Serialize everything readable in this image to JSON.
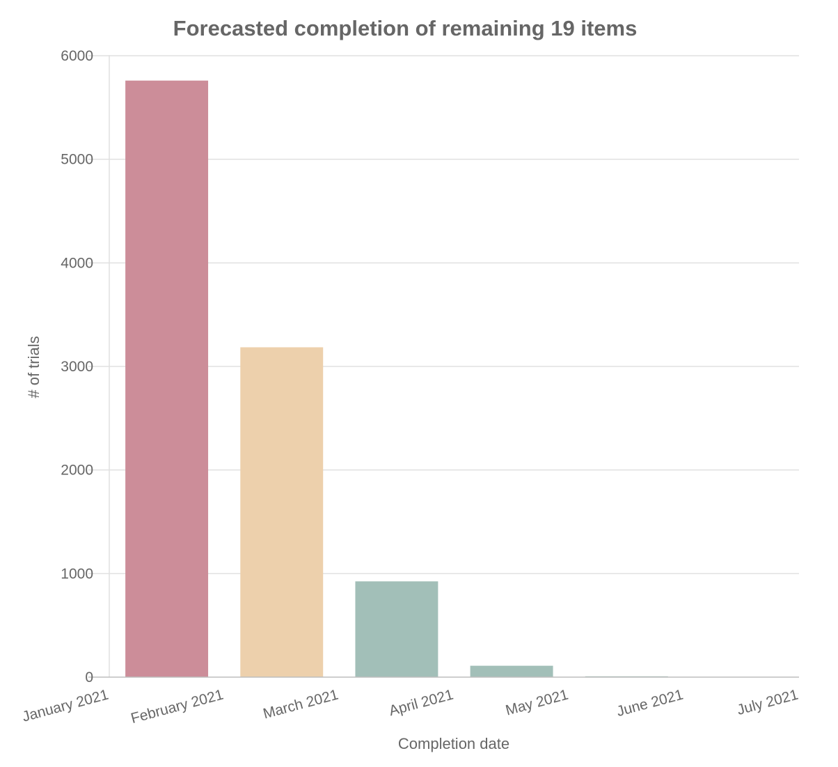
{
  "chart_data": {
    "type": "bar",
    "title": "Forecasted completion of remaining 19 items",
    "xlabel": "Completion date",
    "ylabel": "# of trials",
    "x_tick_labels": [
      "January 2021",
      "February 2021",
      "March 2021",
      "April 2021",
      "May 2021",
      "June 2021",
      "July 2021"
    ],
    "categories": [
      "February 2021",
      "March 2021",
      "April 2021",
      "May 2021",
      "June 2021"
    ],
    "values": [
      5760,
      3185,
      925,
      110,
      8
    ],
    "colors": [
      "#cc8d99",
      "#edd0ac",
      "#a2bfb8",
      "#a2bfb8",
      "#a2bfb8"
    ],
    "ylim": [
      0,
      6000
    ],
    "y_ticks": [
      0,
      1000,
      2000,
      3000,
      4000,
      5000,
      6000
    ],
    "grid": true,
    "legend": "none"
  }
}
